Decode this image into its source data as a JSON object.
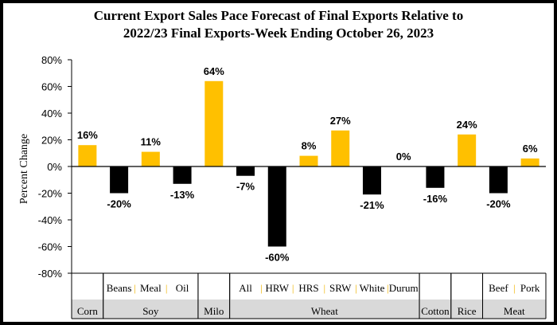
{
  "chart_data": {
    "type": "bar",
    "title_line1": "Current Export Sales Pace Forecast of Final Exports Relative to",
    "title_line2": "2022/23 Final Exports-Week Ending October 26, 2023",
    "ylabel": "Percent Change",
    "ylim": [
      -80,
      80
    ],
    "yticks": [
      80,
      60,
      40,
      20,
      0,
      -20,
      -40,
      -60,
      -80
    ],
    "ytick_labels": [
      "80%",
      "60%",
      "40%",
      "20%",
      "0%",
      "-20%",
      "-40%",
      "-60%",
      "-80%"
    ],
    "colors": {
      "current": "#ffc000",
      "pending": "#000000",
      "separator": "#f0b400",
      "group_band": "#d9d9d9"
    },
    "bars": [
      {
        "x": 1,
        "value": 16,
        "label": "16%",
        "color": "current"
      },
      {
        "x": 2,
        "value": -20,
        "label": "-20%",
        "color": "pending"
      },
      {
        "x": 3,
        "value": 11,
        "label": "11%",
        "color": "current"
      },
      {
        "x": 4,
        "value": -13,
        "label": "-13%",
        "color": "pending"
      },
      {
        "x": 5,
        "value": 64,
        "label": "64%",
        "color": "current"
      },
      {
        "x": 6,
        "value": -7,
        "label": "-7%",
        "color": "pending"
      },
      {
        "x": 7,
        "value": -60,
        "label": "-60%",
        "color": "pending"
      },
      {
        "x": 8,
        "value": 8,
        "label": "8%",
        "color": "current"
      },
      {
        "x": 9,
        "value": 27,
        "label": "27%",
        "color": "current"
      },
      {
        "x": 10,
        "value": -21,
        "label": "-21%",
        "color": "pending"
      },
      {
        "x": 11,
        "value": 0,
        "label": "0%",
        "color": "current"
      },
      {
        "x": 12,
        "value": -16,
        "label": "-16%",
        "color": "pending"
      },
      {
        "x": 13,
        "value": 24,
        "label": "24%",
        "color": "current"
      },
      {
        "x": 14,
        "value": -20,
        "label": "-20%",
        "color": "pending"
      },
      {
        "x": 15,
        "value": 6,
        "label": "6%",
        "color": "current"
      }
    ],
    "groups": [
      {
        "name": "Corn",
        "from": 0.5,
        "to": 1.5,
        "subs": []
      },
      {
        "name": "Soy",
        "from": 1.5,
        "to": 4.5,
        "subs": [
          {
            "label": "Beans",
            "from": 1.5,
            "to": 2.5
          },
          {
            "label": "Meal",
            "from": 2.5,
            "to": 3.5
          },
          {
            "label": "Oil",
            "from": 3.5,
            "to": 4.5
          }
        ]
      },
      {
        "name": "Milo",
        "from": 4.5,
        "to": 5.5,
        "subs": []
      },
      {
        "name": "Wheat",
        "from": 5.5,
        "to": 11.5,
        "subs": [
          {
            "label": "All",
            "from": 5.5,
            "to": 6.5
          },
          {
            "label": "HRW",
            "from": 6.5,
            "to": 7.5
          },
          {
            "label": "HRS",
            "from": 7.5,
            "to": 8.5
          },
          {
            "label": "SRW",
            "from": 8.5,
            "to": 9.5
          },
          {
            "label": "White",
            "from": 9.5,
            "to": 10.5
          },
          {
            "label": "Durum",
            "from": 10.5,
            "to": 11.5
          }
        ]
      },
      {
        "name": "Cotton",
        "from": 11.5,
        "to": 12.5,
        "subs": []
      },
      {
        "name": "Rice",
        "from": 12.5,
        "to": 13.5,
        "subs": []
      },
      {
        "name": "Meat",
        "from": 13.5,
        "to": 15.5,
        "subs": [
          {
            "label": "Beef",
            "from": 13.5,
            "to": 14.5
          },
          {
            "label": "Pork",
            "from": 14.5,
            "to": 15.5
          }
        ]
      }
    ],
    "sub_separator": "|"
  }
}
